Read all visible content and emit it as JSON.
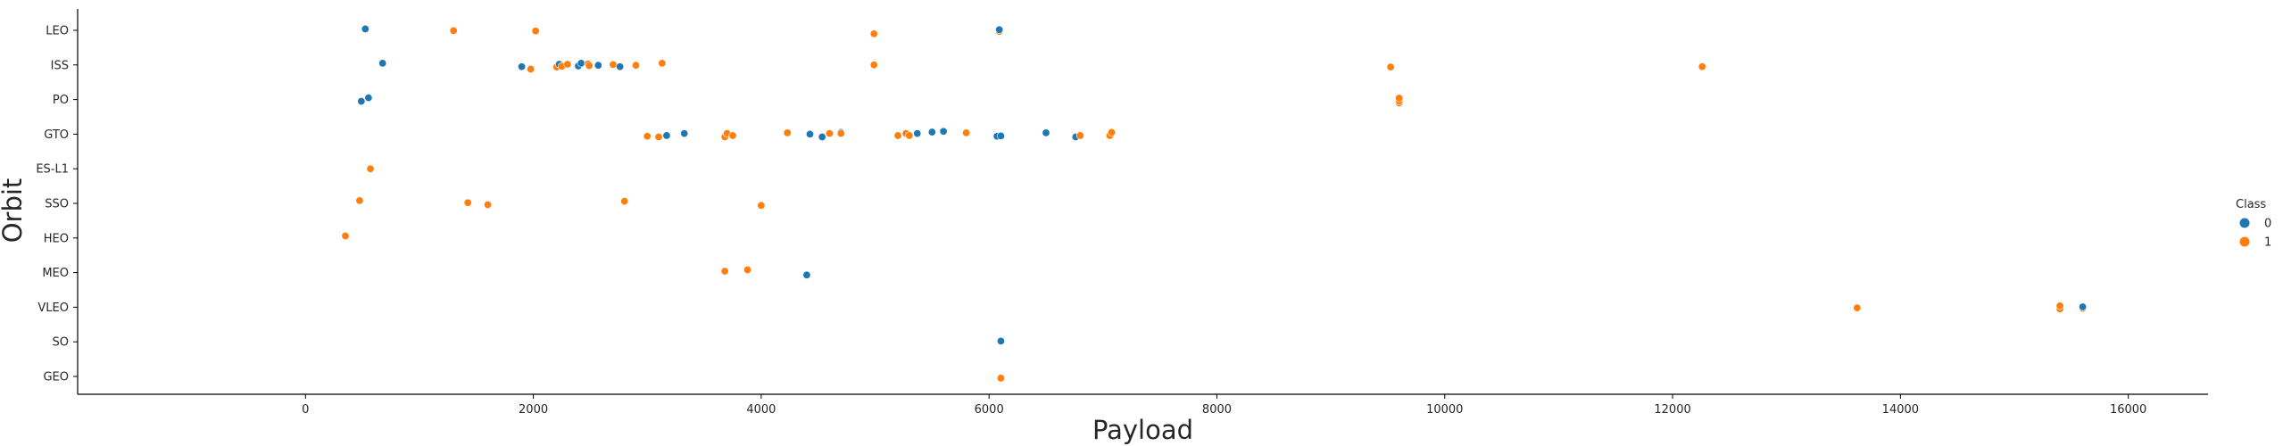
{
  "chart_data": {
    "type": "scatter",
    "title": "",
    "xlabel": "Payload",
    "ylabel": "Orbit",
    "xlim": [
      -2000,
      16700
    ],
    "xticks": [
      0,
      2000,
      4000,
      6000,
      8000,
      10000,
      12000,
      14000,
      16000
    ],
    "xtick_labels": [
      "0",
      "2000",
      "4000",
      "6000",
      "8000",
      "10000",
      "12000",
      "14000",
      "16000"
    ],
    "categories": [
      "LEO",
      "ISS",
      "PO",
      "GTO",
      "ES-L1",
      "SSO",
      "HEO",
      "MEO",
      "VLEO",
      "SO",
      "GEO"
    ],
    "grid": false,
    "legend": {
      "title": "Class",
      "placement": "right",
      "entries": [
        {
          "label": "0",
          "color": "#1f77b4"
        },
        {
          "label": "1",
          "color": "#ff7f0e"
        }
      ]
    },
    "points": [
      {
        "x": 525,
        "orbit": "LEO",
        "class": 0,
        "jitter": -0.04
      },
      {
        "x": 1300,
        "orbit": "LEO",
        "class": 1,
        "jitter": 0.01
      },
      {
        "x": 2020,
        "orbit": "LEO",
        "class": 1,
        "jitter": 0.02
      },
      {
        "x": 4990,
        "orbit": "LEO",
        "class": 1,
        "jitter": 0.1
      },
      {
        "x": 6090,
        "orbit": "LEO",
        "class": 1,
        "jitter": 0.03
      },
      {
        "x": 6090,
        "orbit": "LEO",
        "class": 0,
        "jitter": -0.02
      },
      {
        "x": 677,
        "orbit": "ISS",
        "class": 0,
        "jitter": -0.05
      },
      {
        "x": 1898,
        "orbit": "ISS",
        "class": 0,
        "jitter": 0.05
      },
      {
        "x": 1977,
        "orbit": "ISS",
        "class": 1,
        "jitter": 0.12
      },
      {
        "x": 2205,
        "orbit": "ISS",
        "class": 1,
        "jitter": 0.06
      },
      {
        "x": 2227,
        "orbit": "ISS",
        "class": 0,
        "jitter": -0.02
      },
      {
        "x": 2250,
        "orbit": "ISS",
        "class": 1,
        "jitter": 0.04
      },
      {
        "x": 2300,
        "orbit": "ISS",
        "class": 1,
        "jitter": -0.02
      },
      {
        "x": 2395,
        "orbit": "ISS",
        "class": 0,
        "jitter": 0.03
      },
      {
        "x": 2420,
        "orbit": "ISS",
        "class": 0,
        "jitter": -0.05
      },
      {
        "x": 2480,
        "orbit": "ISS",
        "class": 1,
        "jitter": -0.03
      },
      {
        "x": 2490,
        "orbit": "ISS",
        "class": 1,
        "jitter": 0.02
      },
      {
        "x": 2570,
        "orbit": "ISS",
        "class": 0,
        "jitter": 0.01
      },
      {
        "x": 2700,
        "orbit": "ISS",
        "class": 1,
        "jitter": -0.01
      },
      {
        "x": 2760,
        "orbit": "ISS",
        "class": 0,
        "jitter": 0.05
      },
      {
        "x": 2900,
        "orbit": "ISS",
        "class": 1,
        "jitter": 0.01
      },
      {
        "x": 3130,
        "orbit": "ISS",
        "class": 1,
        "jitter": -0.05
      },
      {
        "x": 4990,
        "orbit": "ISS",
        "class": 1,
        "jitter": 0.0
      },
      {
        "x": 9525,
        "orbit": "ISS",
        "class": 1,
        "jitter": 0.06
      },
      {
        "x": 12260,
        "orbit": "ISS",
        "class": 1,
        "jitter": 0.05
      },
      {
        "x": 490,
        "orbit": "PO",
        "class": 0,
        "jitter": 0.05
      },
      {
        "x": 553,
        "orbit": "PO",
        "class": 0,
        "jitter": -0.05
      },
      {
        "x": 9600,
        "orbit": "PO",
        "class": 1,
        "jitter": 0.1
      },
      {
        "x": 9600,
        "orbit": "PO",
        "class": 1,
        "jitter": 0.05
      },
      {
        "x": 9600,
        "orbit": "PO",
        "class": 1,
        "jitter": -0.04
      },
      {
        "x": 3000,
        "orbit": "GTO",
        "class": 1,
        "jitter": 0.06
      },
      {
        "x": 3100,
        "orbit": "GTO",
        "class": 1,
        "jitter": 0.08
      },
      {
        "x": 3170,
        "orbit": "GTO",
        "class": 0,
        "jitter": 0.04
      },
      {
        "x": 3325,
        "orbit": "GTO",
        "class": 0,
        "jitter": -0.02
      },
      {
        "x": 3681,
        "orbit": "GTO",
        "class": 1,
        "jitter": 0.08
      },
      {
        "x": 3700,
        "orbit": "GTO",
        "class": 1,
        "jitter": -0.02
      },
      {
        "x": 3750,
        "orbit": "GTO",
        "class": 1,
        "jitter": 0.04
      },
      {
        "x": 4230,
        "orbit": "GTO",
        "class": 1,
        "jitter": -0.04
      },
      {
        "x": 4428,
        "orbit": "GTO",
        "class": 0,
        "jitter": 0.0
      },
      {
        "x": 4535,
        "orbit": "GTO",
        "class": 0,
        "jitter": 0.08
      },
      {
        "x": 4600,
        "orbit": "GTO",
        "class": 1,
        "jitter": -0.02
      },
      {
        "x": 4700,
        "orbit": "GTO",
        "class": 0,
        "jitter": -0.05
      },
      {
        "x": 4700,
        "orbit": "GTO",
        "class": 1,
        "jitter": -0.02
      },
      {
        "x": 5200,
        "orbit": "GTO",
        "class": 1,
        "jitter": 0.04
      },
      {
        "x": 5271,
        "orbit": "GTO",
        "class": 1,
        "jitter": -0.02
      },
      {
        "x": 5300,
        "orbit": "GTO",
        "class": 1,
        "jitter": 0.04
      },
      {
        "x": 5370,
        "orbit": "GTO",
        "class": 0,
        "jitter": -0.02
      },
      {
        "x": 5500,
        "orbit": "GTO",
        "class": 0,
        "jitter": -0.06
      },
      {
        "x": 5600,
        "orbit": "GTO",
        "class": 0,
        "jitter": -0.08
      },
      {
        "x": 5800,
        "orbit": "GTO",
        "class": 1,
        "jitter": -0.04
      },
      {
        "x": 6070,
        "orbit": "GTO",
        "class": 0,
        "jitter": 0.06
      },
      {
        "x": 6104,
        "orbit": "GTO",
        "class": 0,
        "jitter": 0.05
      },
      {
        "x": 6500,
        "orbit": "GTO",
        "class": 0,
        "jitter": -0.04
      },
      {
        "x": 6761,
        "orbit": "GTO",
        "class": 0,
        "jitter": 0.08
      },
      {
        "x": 6800,
        "orbit": "GTO",
        "class": 1,
        "jitter": 0.04
      },
      {
        "x": 7060,
        "orbit": "GTO",
        "class": 1,
        "jitter": 0.04
      },
      {
        "x": 7076,
        "orbit": "GTO",
        "class": 1,
        "jitter": -0.05
      },
      {
        "x": 570,
        "orbit": "ES-L1",
        "class": 1,
        "jitter": 0.0
      },
      {
        "x": 475,
        "orbit": "SSO",
        "class": 1,
        "jitter": -0.08
      },
      {
        "x": 1425,
        "orbit": "SSO",
        "class": 1,
        "jitter": -0.02
      },
      {
        "x": 1600,
        "orbit": "SSO",
        "class": 1,
        "jitter": 0.04
      },
      {
        "x": 2800,
        "orbit": "SSO",
        "class": 1,
        "jitter": -0.06
      },
      {
        "x": 4000,
        "orbit": "SSO",
        "class": 1,
        "jitter": 0.06
      },
      {
        "x": 350,
        "orbit": "HEO",
        "class": 1,
        "jitter": -0.06
      },
      {
        "x": 3681,
        "orbit": "MEO",
        "class": 1,
        "jitter": -0.04
      },
      {
        "x": 3880,
        "orbit": "MEO",
        "class": 1,
        "jitter": -0.08
      },
      {
        "x": 4400,
        "orbit": "MEO",
        "class": 0,
        "jitter": 0.07
      },
      {
        "x": 13620,
        "orbit": "VLEO",
        "class": 1,
        "jitter": 0.02
      },
      {
        "x": 15400,
        "orbit": "VLEO",
        "class": 1,
        "jitter": 0.05
      },
      {
        "x": 15400,
        "orbit": "VLEO",
        "class": 1,
        "jitter": -0.04
      },
      {
        "x": 15600,
        "orbit": "VLEO",
        "class": 1,
        "jitter": 0.03
      },
      {
        "x": 15600,
        "orbit": "VLEO",
        "class": 0,
        "jitter": -0.01
      },
      {
        "x": 6104,
        "orbit": "SO",
        "class": 0,
        "jitter": -0.02
      },
      {
        "x": 6104,
        "orbit": "GEO",
        "class": 1,
        "jitter": 0.05
      }
    ]
  }
}
